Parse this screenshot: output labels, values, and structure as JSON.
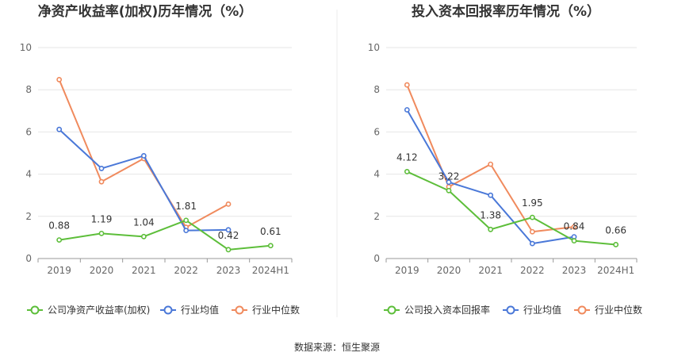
{
  "source": "数据来源：恒生聚源",
  "colors": {
    "company": "#5dbe3a",
    "avg": "#4a78d8",
    "median": "#f08a5d",
    "grid": "#e6e6e6",
    "axis": "#999999"
  },
  "chart_data": [
    {
      "type": "line",
      "title": "净资产收益率(加权)历年情况（%）",
      "categories": [
        "2019",
        "2020",
        "2021",
        "2022",
        "2023",
        "2024H1"
      ],
      "ylim": [
        0,
        10
      ],
      "yticks": [
        "0",
        "2",
        "4",
        "6",
        "8",
        "10"
      ],
      "grid": true,
      "legend_position": "bottom",
      "series": [
        {
          "name": "公司净资产收益率(加权)",
          "color": "#5dbe3a",
          "values": [
            0.88,
            1.19,
            1.04,
            1.81,
            0.42,
            0.61
          ],
          "labels": [
            "0.88",
            "1.19",
            "1.04",
            "1.81",
            "0.42",
            "0.61"
          ]
        },
        {
          "name": "行业均值",
          "color": "#4a78d8",
          "values": [
            6.12,
            4.27,
            4.87,
            1.33,
            1.36,
            null
          ]
        },
        {
          "name": "行业中位数",
          "color": "#f08a5d",
          "values": [
            8.48,
            3.64,
            4.74,
            1.48,
            2.58,
            null
          ]
        }
      ]
    },
    {
      "type": "line",
      "title": "投入资本回报率历年情况（%）",
      "categories": [
        "2019",
        "2020",
        "2021",
        "2022",
        "2023",
        "2024H1"
      ],
      "ylim": [
        0,
        10
      ],
      "yticks": [
        "0",
        "2",
        "4",
        "6",
        "8",
        "10"
      ],
      "grid": true,
      "legend_position": "bottom",
      "series": [
        {
          "name": "公司投入资本回报率",
          "color": "#5dbe3a",
          "values": [
            4.12,
            3.22,
            1.38,
            1.95,
            0.84,
            0.66
          ],
          "labels": [
            "4.12",
            "3.22",
            "1.38",
            "1.95",
            "0.84",
            "0.66"
          ]
        },
        {
          "name": "行业均值",
          "color": "#4a78d8",
          "values": [
            7.05,
            3.62,
            3.0,
            0.71,
            1.03,
            null
          ]
        },
        {
          "name": "行业中位数",
          "color": "#f08a5d",
          "values": [
            8.23,
            3.4,
            4.47,
            1.27,
            1.5,
            null
          ]
        }
      ]
    }
  ]
}
